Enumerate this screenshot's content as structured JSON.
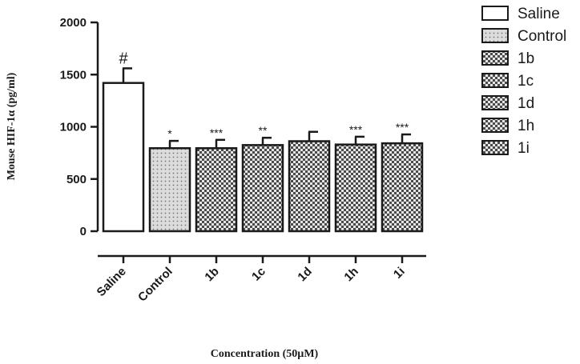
{
  "chart_data": {
    "type": "bar",
    "title": "",
    "xlabel": "Concentration (50µM)",
    "ylabel": "Mouse HIF-1α (pg/ml)",
    "ylim": [
      0,
      2000
    ],
    "yticks": [
      0,
      500,
      1000,
      1500,
      2000
    ],
    "categories": [
      "Saline",
      "Control",
      "1b",
      "1c",
      "1d",
      "1h",
      "1i"
    ],
    "values": [
      1420,
      795,
      795,
      825,
      862,
      830,
      842
    ],
    "errors": [
      140,
      70,
      80,
      70,
      90,
      75,
      85
    ],
    "significance": [
      "#",
      "*",
      "***",
      "**",
      "",
      "***",
      "***"
    ],
    "fill_styles": [
      "empty",
      "dots",
      "checker",
      "checker",
      "checker",
      "checker",
      "checker"
    ],
    "colors": {
      "saline_fill": "#ffffff",
      "control_fill": "#dcdcdc",
      "checker_dark": "#4a4a4a",
      "checker_light": "#e6e6e6",
      "stroke": "#1a1a1a"
    },
    "legend": {
      "placement": "right",
      "entries": [
        "Saline",
        "Control",
        "1b",
        "1c",
        "1d",
        "1h",
        "1i"
      ]
    },
    "grid": false
  }
}
